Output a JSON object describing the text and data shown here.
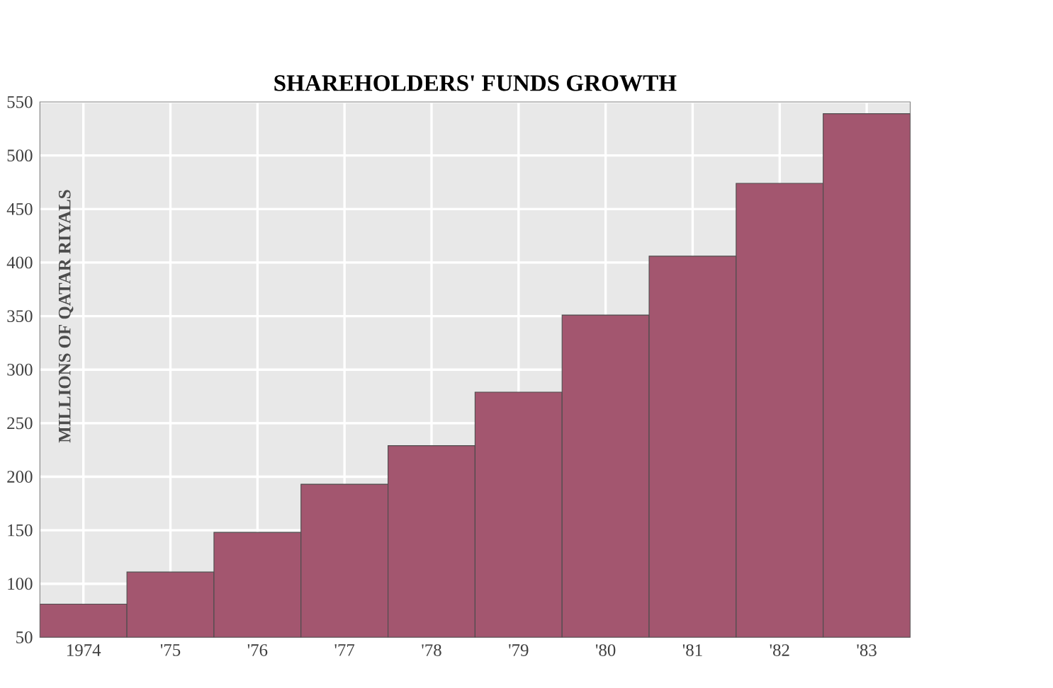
{
  "chart_data": {
    "type": "bar",
    "title": "SHAREHOLDERS' FUNDS GROWTH",
    "ylabel": "MILLIONS OF QATAR RIYALS",
    "categories": [
      "1974",
      "'75",
      "'76",
      "'77",
      "'78",
      "'79",
      "'80",
      "'81",
      "'82",
      "'83"
    ],
    "values": [
      81,
      111,
      148,
      193,
      229,
      279,
      351,
      406,
      474,
      539
    ],
    "color": "#a3566f",
    "ylim": [
      50,
      550
    ],
    "yticks": [
      50,
      100,
      150,
      200,
      250,
      300,
      350,
      400,
      450,
      500,
      550
    ],
    "grid": true
  }
}
